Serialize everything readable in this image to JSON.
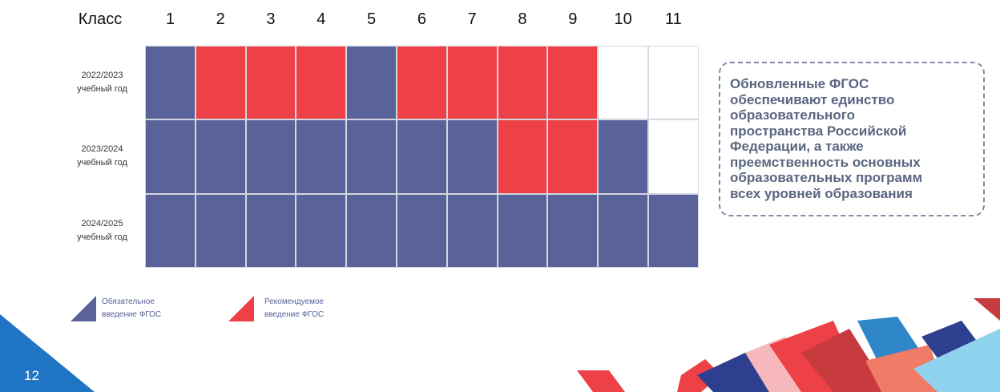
{
  "header": {
    "label": "Класс",
    "classes": [
      "1",
      "2",
      "3",
      "4",
      "5",
      "6",
      "7",
      "8",
      "9",
      "10",
      "11"
    ]
  },
  "rows": [
    {
      "label": [
        "2022/2023",
        "учебный год"
      ],
      "cells": [
        "#5a6399",
        "#ee4047",
        "#ee4047",
        "#ee4047",
        "#5a6399",
        "#ee4047",
        "#ee4047",
        "#ee4047",
        "#ee4047",
        null,
        null
      ]
    },
    {
      "label": [
        "2023/2024",
        "учебный год"
      ],
      "cells": [
        "#5a6399",
        "#5a6399",
        "#5a6399",
        "#5a6399",
        "#5a6399",
        "#5a6399",
        "#5a6399",
        "#ee4047",
        "#ee4047",
        "#5a6399",
        null
      ]
    },
    {
      "label": [
        "2024/2025",
        "учебный год"
      ],
      "cells": [
        "#5a6399",
        "#5a6399",
        "#5a6399",
        "#5a6399",
        "#5a6399",
        "#5a6399",
        "#5a6399",
        "#5a6399",
        "#5a6399",
        "#5a6399",
        "#5a6399"
      ]
    }
  ],
  "note": [
    "Обновленные ФГОС",
    "обеспечивают единство",
    "образовательного",
    "пространства Российской",
    "Федерации, а также",
    "преемственность основных",
    "образовательных программ",
    "всех уровней образования"
  ],
  "legend": [
    {
      "label": [
        "Обязательное",
        "введение ФГОС"
      ],
      "color": "#5a6399"
    },
    {
      "label": [
        "Рекомендуемое",
        "введение ФГОС"
      ],
      "color": "#ee4047"
    }
  ],
  "page_number": "12"
}
